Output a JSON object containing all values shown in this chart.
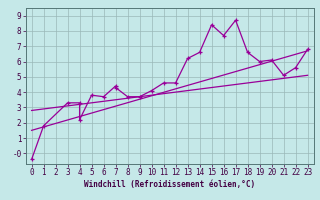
{
  "xlabel": "Windchill (Refroidissement éolien,°C)",
  "bg_color": "#c5e8e8",
  "line_color": "#990099",
  "grid_color": "#9ab8b8",
  "xlim": [
    -0.5,
    23.5
  ],
  "ylim": [
    -0.7,
    9.5
  ],
  "xticks": [
    0,
    1,
    2,
    3,
    4,
    5,
    6,
    7,
    8,
    9,
    10,
    11,
    12,
    13,
    14,
    15,
    16,
    17,
    18,
    19,
    20,
    21,
    22,
    23
  ],
  "yticks": [
    0,
    1,
    2,
    3,
    4,
    5,
    6,
    7,
    8,
    9
  ],
  "ytick_labels": [
    "-0",
    "1",
    "2",
    "3",
    "4",
    "5",
    "6",
    "7",
    "8",
    "9"
  ],
  "data_x": [
    0,
    1,
    3,
    4,
    4,
    5,
    6,
    7,
    7,
    8,
    9,
    10,
    11,
    12,
    13,
    14,
    15,
    16,
    17,
    18,
    19,
    20,
    21,
    22,
    23
  ],
  "data_y": [
    -0.4,
    1.8,
    3.3,
    3.3,
    2.2,
    3.8,
    3.7,
    4.4,
    4.3,
    3.7,
    3.7,
    4.1,
    4.6,
    4.6,
    6.2,
    6.6,
    8.4,
    7.7,
    8.7,
    6.6,
    6.0,
    6.1,
    5.1,
    5.6,
    6.8
  ],
  "line1_x": [
    0,
    23
  ],
  "line1_y": [
    1.5,
    6.7
  ],
  "line2_x": [
    0,
    23
  ],
  "line2_y": [
    2.8,
    5.1
  ],
  "xlabel_fontsize": 5.5,
  "tick_fontsize": 5.5
}
